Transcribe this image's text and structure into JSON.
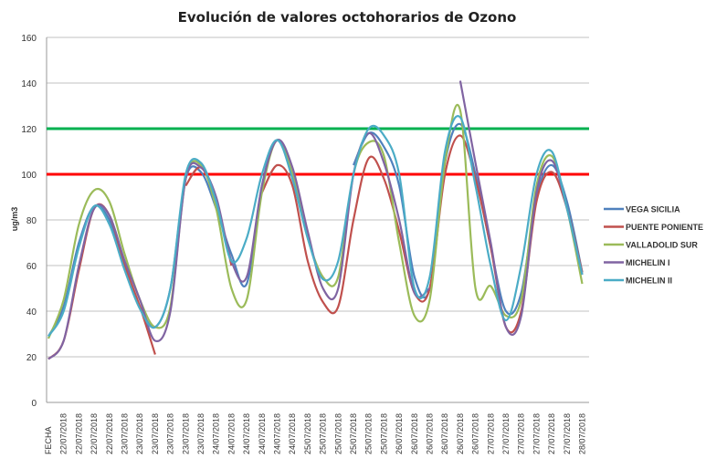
{
  "chart_data": {
    "type": "line",
    "title": "Evolución de valores  octohorarios de Ozono",
    "xlabel": "",
    "ylabel": "ug/m3",
    "ylim": [
      0,
      160
    ],
    "yticks": [
      0,
      20,
      40,
      60,
      80,
      100,
      120,
      140,
      160
    ],
    "grid": true,
    "legend_position": "right",
    "categories": [
      "FECHA",
      "22/07/2018",
      "22/07/2018",
      "22/07/2018",
      "22/07/2018",
      "23/07/2018",
      "23/07/2018",
      "23/07/2018",
      "23/07/2018",
      "23/07/2018",
      "23/07/2018",
      "24/07/2018",
      "24/07/2018",
      "24/07/2018",
      "24/07/2018",
      "24/07/2018",
      "24/07/2018",
      "25/07/2018",
      "25/07/2018",
      "25/07/2018",
      "25/07/2018",
      "25/07/2018",
      "25/07/2018",
      "26/07/2018",
      "26/07/2018",
      "26/07/2018",
      "26/07/2018",
      "26/07/2018",
      "26/07/2018",
      "27/07/2018",
      "27/07/2018",
      "27/07/2018",
      "27/07/2018",
      "27/07/2018",
      "27/07/2018",
      "28/07/2018"
    ],
    "thresholds": [
      {
        "value": 120,
        "color": "#00B050"
      },
      {
        "value": 100,
        "color": "#FF0000"
      }
    ],
    "series": [
      {
        "name": "VEGA SICILIA",
        "color": "#4F81BD",
        "values": [
          29,
          42,
          70,
          86,
          80,
          60,
          42,
          33,
          50,
          98,
          101,
          85,
          65,
          52,
          95,
          115,
          100,
          null,
          null,
          null,
          104,
          118,
          112,
          95,
          55,
          50,
          105,
          122,
          100,
          68,
          40,
          48,
          90,
          104,
          88,
          57
        ]
      },
      {
        "name": "PUENTE PONIENTE",
        "color": "#C0504D",
        "values": [
          19,
          27,
          58,
          85,
          82,
          60,
          42,
          21,
          null,
          95,
          103,
          88,
          60,
          null,
          92,
          104,
          95,
          62,
          44,
          42,
          80,
          107,
          98,
          75,
          48,
          50,
          100,
          117,
          98,
          68,
          33,
          40,
          88,
          101,
          85,
          57
        ]
      },
      {
        "name": "VALLADOLID SUR",
        "color": "#9BBB59",
        "values": [
          28,
          45,
          78,
          93,
          88,
          65,
          45,
          33,
          42,
          98,
          104,
          85,
          50,
          45,
          92,
          115,
          100,
          72,
          55,
          55,
          100,
          114,
          108,
          70,
          38,
          45,
          105,
          128,
          50,
          51,
          38,
          45,
          95,
          108,
          85,
          52
        ]
      },
      {
        "name": "MICHELIN I",
        "color": "#8064A2",
        "values": [
          19,
          27,
          60,
          85,
          82,
          62,
          45,
          27,
          40,
          98,
          103,
          90,
          62,
          55,
          95,
          115,
          103,
          75,
          50,
          50,
          100,
          118,
          105,
          80,
          48,
          50,
          null,
          141,
          105,
          70,
          33,
          38,
          92,
          106,
          85,
          56
        ]
      },
      {
        "name": "MICHELIN II",
        "color": "#4BACC6",
        "values": [
          29,
          40,
          68,
          86,
          78,
          58,
          41,
          33,
          50,
          100,
          105,
          88,
          62,
          72,
          100,
          115,
          98,
          72,
          54,
          62,
          100,
          120,
          117,
          100,
          50,
          55,
          110,
          125,
          95,
          60,
          36,
          60,
          100,
          110,
          85,
          56
        ]
      }
    ]
  }
}
